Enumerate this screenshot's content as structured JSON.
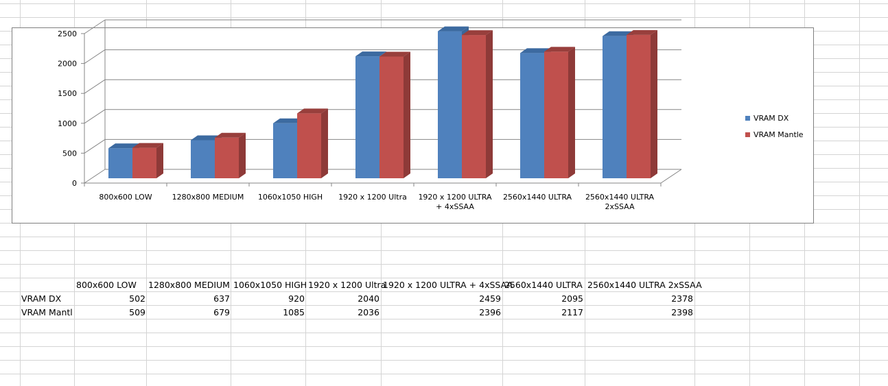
{
  "colors": {
    "series_dx": "#4f81bd",
    "series_mantle": "#c0504d",
    "gridline": "#868686",
    "sheet_gridline": "#d4d4d4"
  },
  "chart_data": {
    "type": "bar",
    "style": "3d-clustered-column",
    "categories": [
      "800x600 LOW",
      "1280x800 MEDIUM",
      "1060x1050 HIGH",
      "1920 x 1200 Ultra",
      "1920 x 1200 ULTRA + 4xSSAA",
      "2560x1440 ULTRA",
      "2560x1440 ULTRA 2xSSAA"
    ],
    "category_label_lines": [
      [
        "800x600 LOW"
      ],
      [
        "1280x800 MEDIUM"
      ],
      [
        "1060x1050 HIGH"
      ],
      [
        "1920 x 1200 Ultra"
      ],
      [
        "1920 x 1200 ULTRA",
        "+ 4xSSAA"
      ],
      [
        "2560x1440 ULTRA"
      ],
      [
        "2560x1440 ULTRA",
        "2xSSAA"
      ]
    ],
    "series": [
      {
        "name": "VRAM DX",
        "values": [
          502,
          637,
          920,
          2040,
          2459,
          2095,
          2378
        ]
      },
      {
        "name": "VRAM Mantle",
        "values": [
          509,
          679,
          1085,
          2036,
          2396,
          2117,
          2398
        ]
      }
    ],
    "ylim": [
      0,
      2500
    ],
    "yticks": [
      "0",
      "500",
      "1000",
      "1500",
      "2000",
      "2500"
    ],
    "grid": true,
    "legend_position": "right"
  },
  "table": {
    "headers": [
      "800x600 LOW",
      "1280x800 MEDIUM",
      "1060x1050 HIGH",
      "1920 x 1200 Ultra",
      "1920 x 1200 ULTRA + 4xSSAA",
      "2560x1440 ULTRA",
      "2560x1440 ULTRA 2xSSAA"
    ],
    "rows": [
      {
        "label": "VRAM DX",
        "values": [
          "502",
          "637",
          "920",
          "2040",
          "2459",
          "2095",
          "2378"
        ]
      },
      {
        "label": "VRAM Mantl",
        "values": [
          "509",
          "679",
          "1085",
          "2036",
          "2396",
          "2117",
          "2398"
        ]
      }
    ]
  }
}
